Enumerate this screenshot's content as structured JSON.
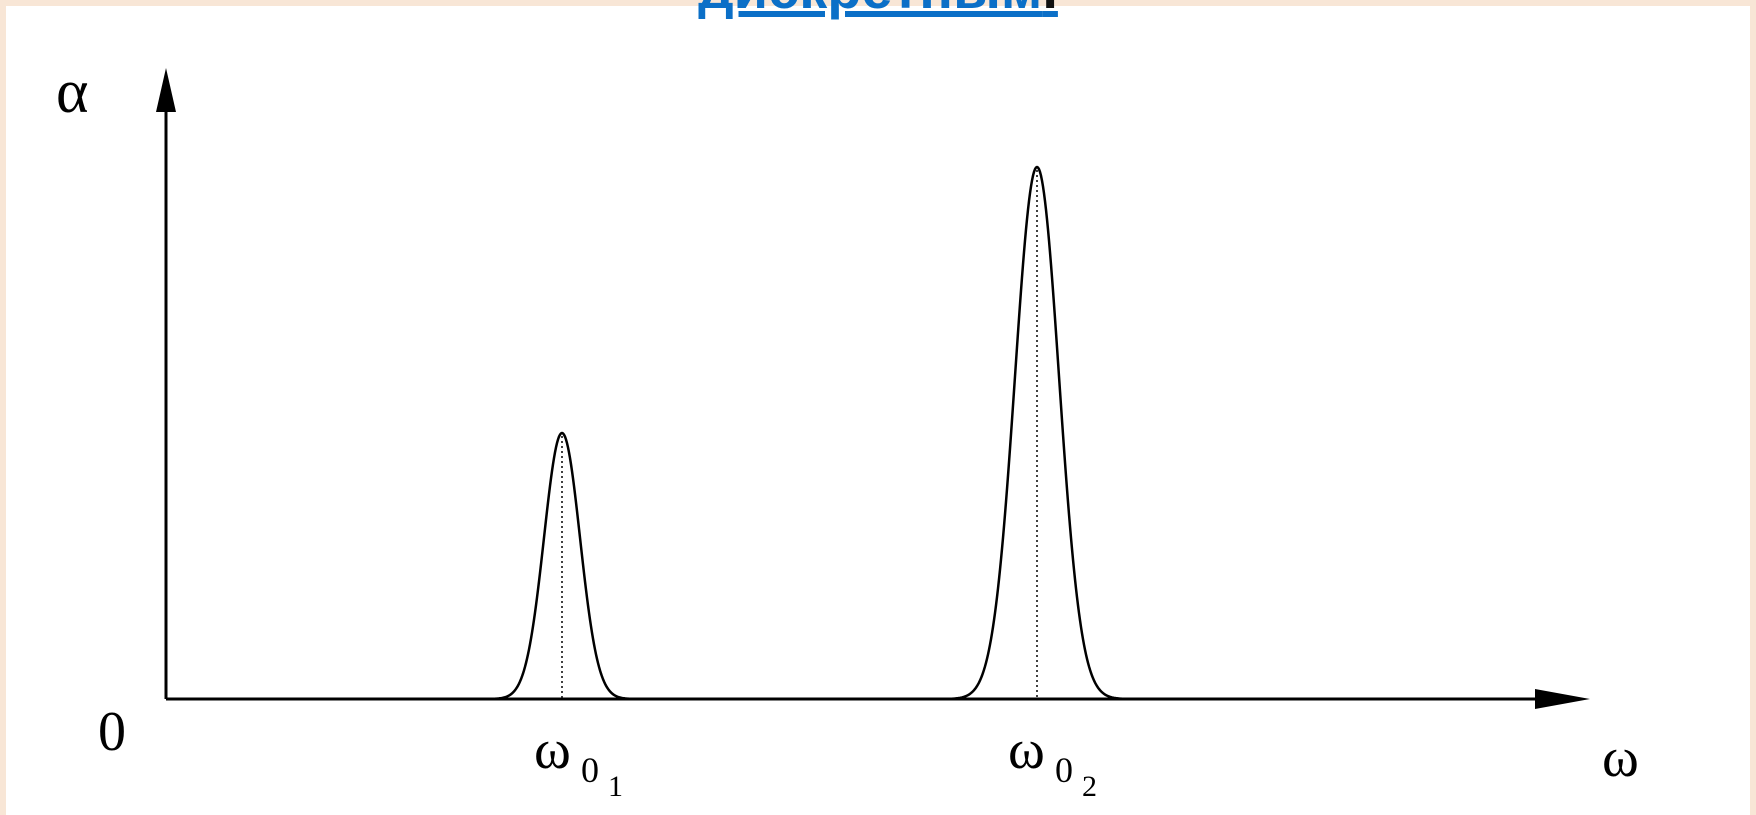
{
  "heading": {
    "link_text": "дискретным",
    "punctuation": "."
  },
  "diagram": {
    "y_axis_label": "α",
    "x_axis_label": "ω",
    "origin_label": "0",
    "peak1": {
      "symbol": "ω",
      "sub0": "0",
      "sub1": "1"
    },
    "peak2": {
      "symbol": "ω",
      "sub0": "0",
      "sub1": "2"
    },
    "colors": {
      "line": "#000000",
      "link": "#0b6fc7",
      "background": "#f8e6d6"
    }
  }
}
